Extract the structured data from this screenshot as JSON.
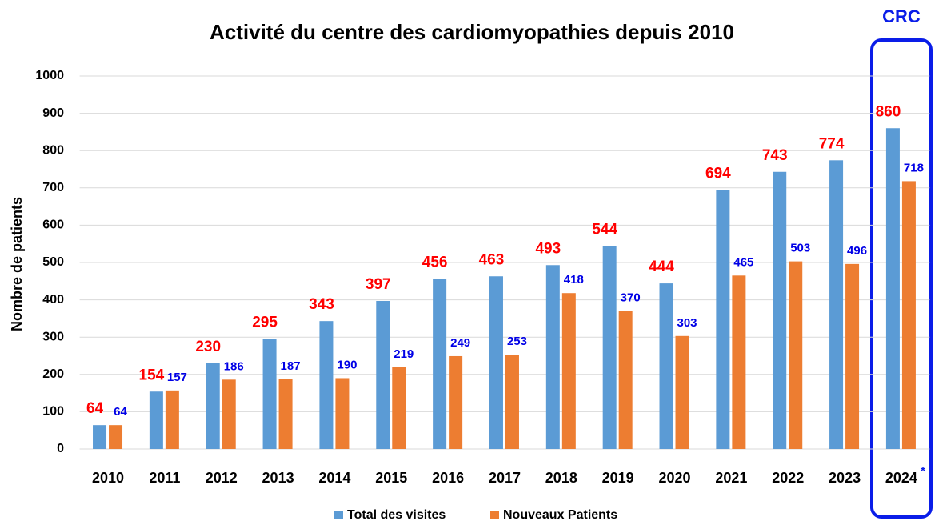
{
  "chart_data": {
    "type": "bar",
    "title": "Activité du centre des cardiomyopathies depuis 2010",
    "y_label": "Nombre de patients",
    "annotation": "CRC",
    "footnote_marker": "*",
    "categories": [
      "2010",
      "2011",
      "2012",
      "2013",
      "2014",
      "2015",
      "2016",
      "2017",
      "2018",
      "2019",
      "2020",
      "2021",
      "2022",
      "2023",
      "2024"
    ],
    "series": [
      {
        "name": "Total des visites",
        "color": "#5b9bd5",
        "label_color": "#ff0000",
        "values": [
          64,
          154,
          230,
          295,
          343,
          397,
          456,
          463,
          493,
          544,
          444,
          694,
          743,
          774,
          860
        ]
      },
      {
        "name": "Nouveaux Patients",
        "color": "#ed7d31",
        "label_color": "#0000e6",
        "values": [
          64,
          157,
          186,
          187,
          190,
          219,
          249,
          253,
          418,
          370,
          303,
          465,
          503,
          496,
          718
        ]
      }
    ],
    "ylim": [
      0,
      1000
    ],
    "yticks": [
      0,
      100,
      200,
      300,
      400,
      500,
      600,
      700,
      800,
      900,
      1000
    ],
    "grid": true
  }
}
